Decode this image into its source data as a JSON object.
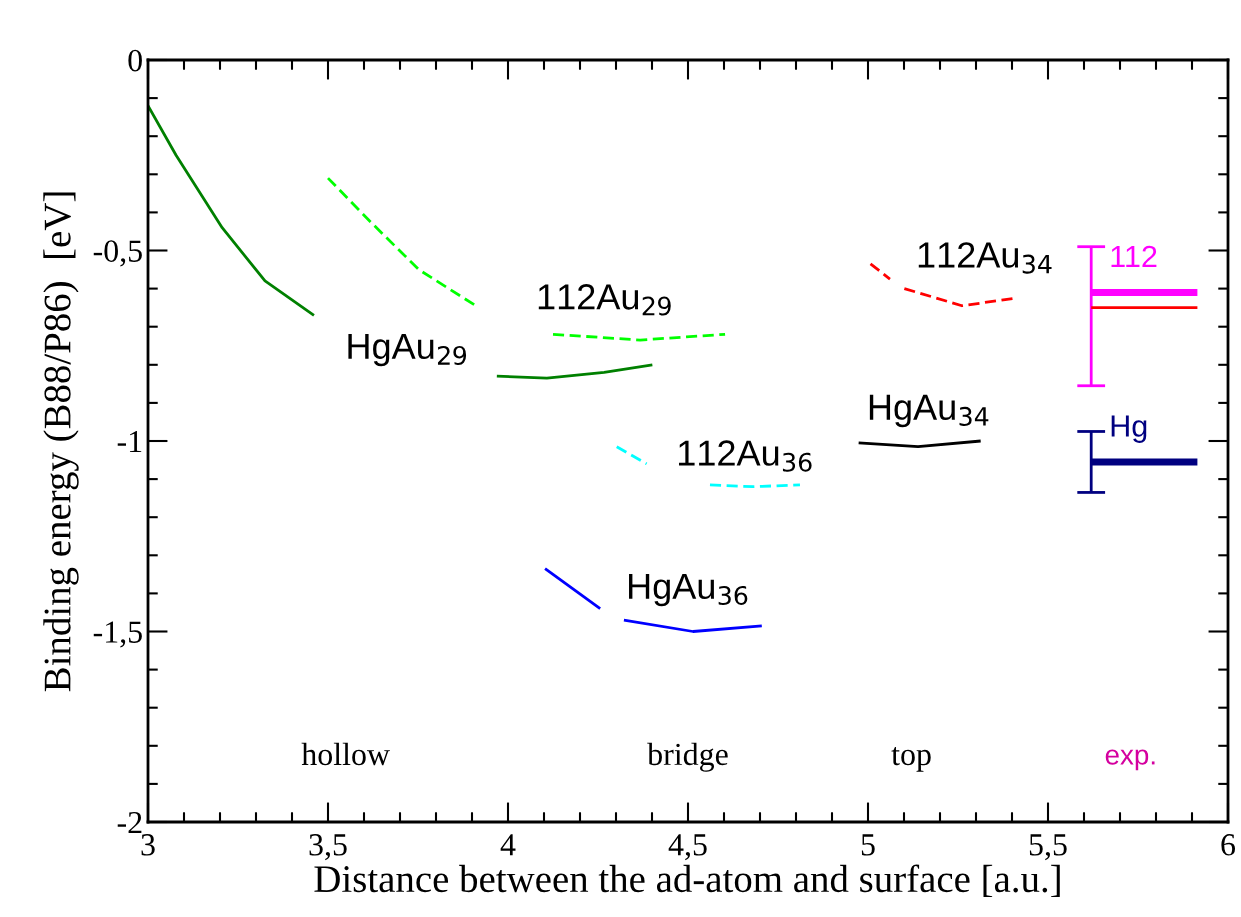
{
  "chart_data": {
    "type": "line",
    "xlabel": "Distance between the ad-atom and surface [a.u.]",
    "ylabel": "Binding energy (B88/P86)  [eV]",
    "xlim": [
      3,
      6
    ],
    "ylim": [
      -2,
      0
    ],
    "xticks": [
      3,
      {
        "value": 3.5,
        "label": "3,5"
      },
      4,
      {
        "value": 4.5,
        "label": "4,5"
      },
      5,
      {
        "value": 5.5,
        "label": "5,5"
      },
      6
    ],
    "yticks": [
      -2,
      {
        "value": -1.5,
        "label": "-1,5"
      },
      -1,
      {
        "value": -0.5,
        "label": "-0,5"
      },
      0
    ],
    "grid": false,
    "marker": "none",
    "series": [
      {
        "color": "#008000",
        "line_style": "solid",
        "x": [
          3.0,
          3.078,
          3.206,
          3.325,
          3.461,
          3.7,
          3.969,
          4.108,
          4.267,
          4.401
        ],
        "values": [
          -0.12,
          -0.25,
          -0.44,
          -0.58,
          -0.67,
          null,
          -0.83,
          -0.835,
          -0.82,
          -0.8
        ]
      },
      {
        "color": "#00ff00",
        "line_style": "dashed",
        "x": [
          3.5,
          3.613,
          3.752,
          3.919,
          4.0,
          4.125,
          4.367,
          4.603
        ],
        "values": [
          -0.31,
          -0.42,
          -0.55,
          -0.65,
          null,
          -0.72,
          -0.735,
          -0.72
        ]
      },
      {
        "color": "#00ffff",
        "line_style": "dashed",
        "x": [
          4.302,
          4.385,
          4.5,
          4.561,
          4.681,
          4.811
        ],
        "values": [
          -1.015,
          -1.06,
          null,
          -1.115,
          -1.12,
          -1.115
        ]
      },
      {
        "color": "#0000ff",
        "line_style": "solid",
        "x": [
          4.103,
          4.256,
          4.29,
          4.322,
          4.514,
          4.705
        ],
        "values": [
          -1.335,
          -1.44,
          null,
          -1.47,
          -1.5,
          -1.485
        ]
      },
      {
        "color": "#000000",
        "line_style": "solid",
        "x": [
          4.974,
          5.139,
          5.313
        ],
        "values": [
          -1.005,
          -1.015,
          -1.0
        ]
      },
      {
        "color": "#ff0000",
        "line_style": "dashed",
        "x": [
          5.007,
          5.061,
          5.08,
          5.101,
          5.261,
          5.411
        ],
        "values": [
          -0.535,
          -0.575,
          null,
          -0.6,
          -0.645,
          -0.625
        ]
      },
      {
        "name": "112",
        "color": "#ff00ff",
        "line_style": "solid",
        "x": [
          5.62,
          5.915
        ],
        "values": [
          -0.61,
          -0.61
        ],
        "errors": [
          [
            -0.855,
            -0.49
          ],
          null
        ]
      },
      {
        "color": "#ff0000",
        "line_style": "solid",
        "x": [
          5.62,
          5.915
        ],
        "values": [
          -0.65,
          -0.65
        ]
      },
      {
        "name": "Hg",
        "color": "#000080",
        "line_style": "solid",
        "x": [
          5.62,
          5.915
        ],
        "values": [
          -1.055,
          -1.055
        ],
        "errors": [
          [
            -1.135,
            -0.975
          ],
          null
        ]
      }
    ],
    "annotations": [
      "HgAu$_{29}$",
      "112Au$_{29}$",
      "112Au$_{36}$",
      "HgAu$_{36}$",
      "HgAu$_{34}$",
      "112Au$_{34}$",
      "hollow",
      "bridge",
      "top",
      "exp."
    ]
  }
}
